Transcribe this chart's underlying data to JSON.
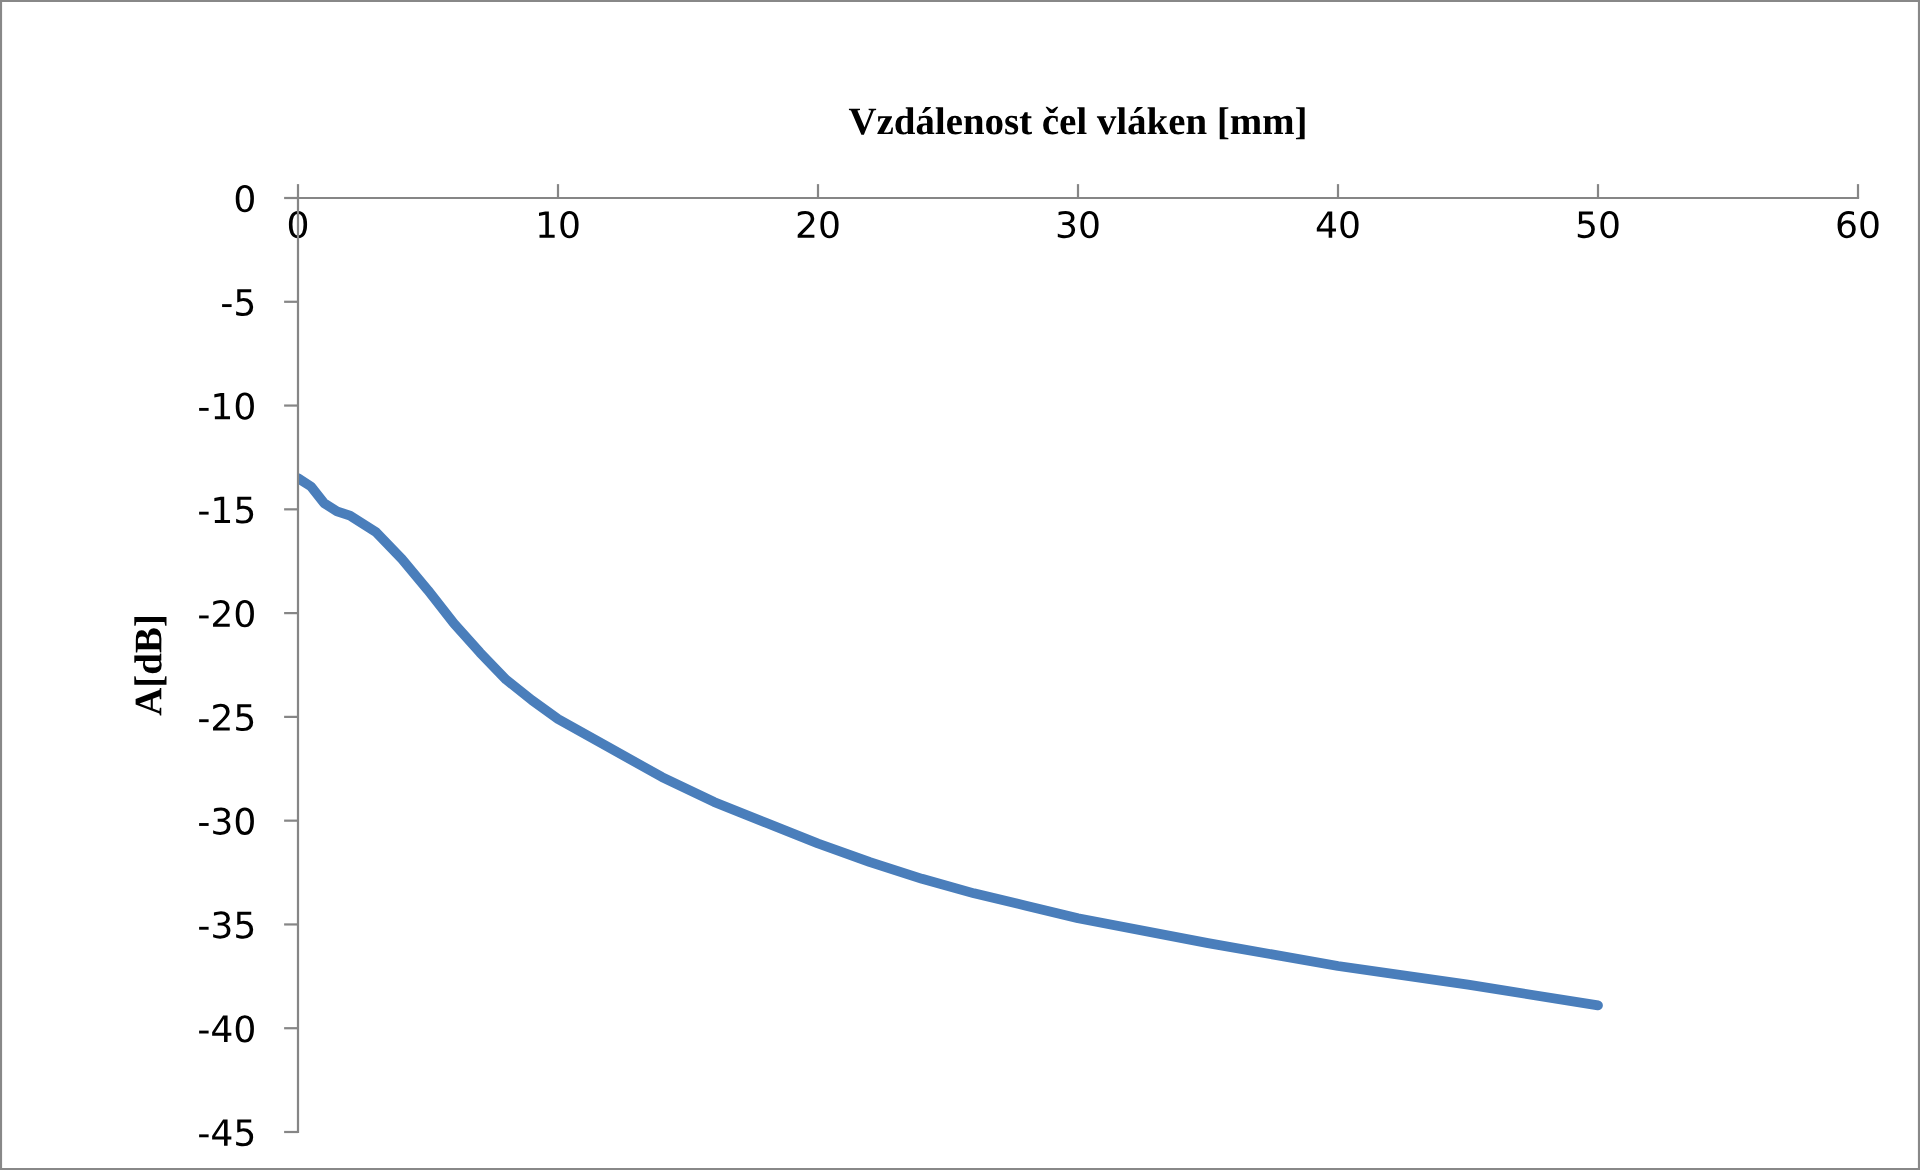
{
  "chart_data": {
    "type": "line",
    "xlabel": "Vzdálenost čel vláken [mm]",
    "ylabel": "A[dB]",
    "x": [
      0,
      0.5,
      1,
      1.5,
      2,
      3,
      4,
      5,
      6,
      7,
      8,
      9,
      10,
      12,
      14,
      16,
      18,
      20,
      22,
      24,
      26,
      28,
      30,
      35,
      40,
      45,
      50
    ],
    "series": [
      {
        "color": "#4a7ebb",
        "values": [
          -13.5,
          -13.9,
          -14.7,
          -15.1,
          -15.3,
          -16.1,
          -17.4,
          -18.9,
          -20.5,
          -21.9,
          -23.2,
          -24.2,
          -25.1,
          -26.5,
          -27.9,
          -29.1,
          -30.1,
          -31.1,
          -32.0,
          -32.8,
          -33.5,
          -34.1,
          -34.7,
          -35.9,
          -37.0,
          -37.9,
          -38.9
        ]
      }
    ],
    "xlim": [
      0,
      60
    ],
    "xticks": [
      0,
      10,
      20,
      30,
      40,
      50,
      60
    ],
    "ylim": [
      -45,
      0
    ],
    "yticks": [
      -45,
      -40,
      -35,
      -30,
      -25,
      -20,
      -15,
      -10,
      -5,
      0
    ],
    "grid": false,
    "legend": false,
    "marker": "none",
    "line_style": "solid"
  }
}
